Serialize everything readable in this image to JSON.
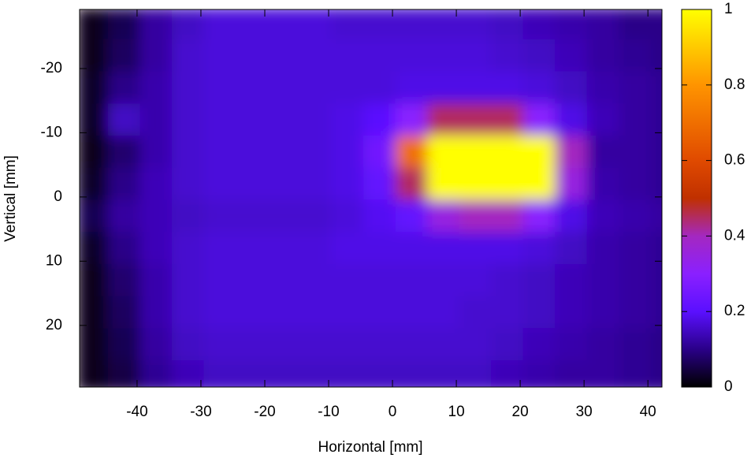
{
  "chart_data": {
    "type": "heatmap",
    "xlabel": "Horizontal [mm]",
    "ylabel": "Vertical [mm]",
    "x": [
      -47,
      -42,
      -37,
      -32,
      -27,
      -22,
      -17,
      -12,
      -7,
      -2,
      3,
      8,
      13,
      18,
      23,
      28,
      33,
      38,
      43
    ],
    "y": [
      -27,
      -22,
      -17,
      -12,
      -7,
      -2,
      3,
      8,
      13,
      18,
      23,
      28
    ],
    "z": [
      [
        0.02,
        0.06,
        0.12,
        0.15,
        0.17,
        0.17,
        0.17,
        0.17,
        0.16,
        0.16,
        0.16,
        0.16,
        0.16,
        0.15,
        0.14,
        0.13,
        0.12,
        0.1,
        0.1
      ],
      [
        0.02,
        0.07,
        0.12,
        0.16,
        0.17,
        0.17,
        0.17,
        0.17,
        0.17,
        0.17,
        0.17,
        0.17,
        0.17,
        0.16,
        0.15,
        0.14,
        0.12,
        0.11,
        0.1
      ],
      [
        0.03,
        0.1,
        0.13,
        0.16,
        0.17,
        0.17,
        0.17,
        0.17,
        0.17,
        0.17,
        0.18,
        0.18,
        0.18,
        0.18,
        0.17,
        0.15,
        0.13,
        0.12,
        0.11
      ],
      [
        0.03,
        0.15,
        0.13,
        0.16,
        0.17,
        0.17,
        0.17,
        0.17,
        0.18,
        0.2,
        0.3,
        0.45,
        0.45,
        0.45,
        0.3,
        0.18,
        0.14,
        0.12,
        0.11
      ],
      [
        0.02,
        0.08,
        0.13,
        0.16,
        0.17,
        0.17,
        0.17,
        0.17,
        0.18,
        0.25,
        0.7,
        1,
        1,
        1,
        1,
        0.4,
        0.12,
        0.12,
        0.11
      ],
      [
        0.03,
        0.1,
        0.14,
        0.16,
        0.17,
        0.17,
        0.17,
        0.17,
        0.18,
        0.22,
        0.45,
        1,
        1,
        1,
        1,
        0.35,
        0.13,
        0.12,
        0.11
      ],
      [
        0.06,
        0.12,
        0.14,
        0.15,
        0.16,
        0.16,
        0.16,
        0.16,
        0.17,
        0.19,
        0.22,
        0.35,
        0.4,
        0.4,
        0.3,
        0.18,
        0.14,
        0.13,
        0.12
      ],
      [
        0.03,
        0.1,
        0.14,
        0.16,
        0.17,
        0.17,
        0.17,
        0.17,
        0.18,
        0.18,
        0.18,
        0.18,
        0.18,
        0.18,
        0.17,
        0.15,
        0.13,
        0.12,
        0.11
      ],
      [
        0.02,
        0.08,
        0.13,
        0.16,
        0.17,
        0.17,
        0.17,
        0.17,
        0.17,
        0.17,
        0.17,
        0.17,
        0.17,
        0.16,
        0.15,
        0.14,
        0.13,
        0.12,
        0.11
      ],
      [
        0.02,
        0.07,
        0.13,
        0.16,
        0.17,
        0.17,
        0.17,
        0.17,
        0.17,
        0.17,
        0.17,
        0.17,
        0.16,
        0.16,
        0.15,
        0.14,
        0.13,
        0.12,
        0.11
      ],
      [
        0.02,
        0.06,
        0.12,
        0.15,
        0.16,
        0.16,
        0.16,
        0.16,
        0.16,
        0.16,
        0.16,
        0.16,
        0.16,
        0.15,
        0.14,
        0.13,
        0.12,
        0.11,
        0.1
      ],
      [
        0.02,
        0.05,
        0.11,
        0.14,
        0.15,
        0.15,
        0.15,
        0.15,
        0.15,
        0.15,
        0.15,
        0.15,
        0.15,
        0.14,
        0.13,
        0.12,
        0.12,
        0.11,
        0.1
      ]
    ],
    "xlim": [
      -49,
      42.2
    ],
    "ylim": [
      -29.2,
      29.6
    ],
    "xticks": [
      -40,
      -30,
      -20,
      -10,
      0,
      10,
      20,
      30,
      40
    ],
    "yticks": [
      -20,
      -10,
      0,
      10,
      20
    ],
    "clim": [
      0,
      1
    ],
    "cticks": [
      0,
      0.2,
      0.4,
      0.6,
      0.8,
      1
    ],
    "colormap": [
      {
        "value": 0,
        "color": "#000000"
      },
      {
        "value": 0.1,
        "color": "#2a0088"
      },
      {
        "value": 0.2,
        "color": "#5a10ff"
      },
      {
        "value": 0.3,
        "color": "#8a20ff"
      },
      {
        "value": 0.4,
        "color": "#a428c0"
      },
      {
        "value": 0.5,
        "color": "#c03000"
      },
      {
        "value": 0.6,
        "color": "#e04a00"
      },
      {
        "value": 0.8,
        "color": "#ff9400"
      },
      {
        "value": 1,
        "color": "#ffff00"
      }
    ]
  }
}
